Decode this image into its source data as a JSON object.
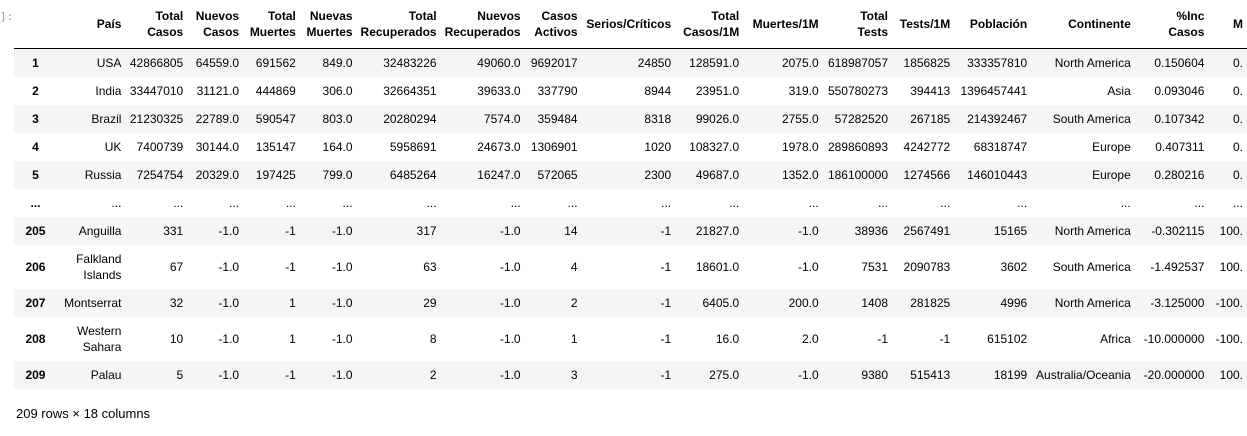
{
  "prompt_marker": "]:",
  "table": {
    "columns": [
      "",
      "País",
      "Total Casos",
      "Nuevos Casos",
      "Total Muertes",
      "Nuevas Muertes",
      "Total Recuperados",
      "Nuevos Recuperados",
      "Casos Activos",
      "Serios/Críticos",
      "Total Casos/1M",
      "Muertes/1M",
      "Total Tests",
      "Tests/1M",
      "Población",
      "Continente",
      "%Inc Casos",
      "M"
    ],
    "rows": [
      {
        "idx": "1",
        "cells": [
          "USA",
          "42866805",
          "64559.0",
          "691562",
          "849.0",
          "32483226",
          "49060.0",
          "9692017",
          "24850",
          "128591.0",
          "2075.0",
          "618987057",
          "1856825",
          "333357810",
          "North America",
          "0.150604",
          "0."
        ]
      },
      {
        "idx": "2",
        "cells": [
          "India",
          "33447010",
          "31121.0",
          "444869",
          "306.0",
          "32664351",
          "39633.0",
          "337790",
          "8944",
          "23951.0",
          "319.0",
          "550780273",
          "394413",
          "1396457441",
          "Asia",
          "0.093046",
          "0."
        ]
      },
      {
        "idx": "3",
        "cells": [
          "Brazil",
          "21230325",
          "22789.0",
          "590547",
          "803.0",
          "20280294",
          "7574.0",
          "359484",
          "8318",
          "99026.0",
          "2755.0",
          "57282520",
          "267185",
          "214392467",
          "South America",
          "0.107342",
          "0."
        ]
      },
      {
        "idx": "4",
        "cells": [
          "UK",
          "7400739",
          "30144.0",
          "135147",
          "164.0",
          "5958691",
          "24673.0",
          "1306901",
          "1020",
          "108327.0",
          "1978.0",
          "289860893",
          "4242772",
          "68318747",
          "Europe",
          "0.407311",
          "0."
        ]
      },
      {
        "idx": "5",
        "cells": [
          "Russia",
          "7254754",
          "20329.0",
          "197425",
          "799.0",
          "6485264",
          "16247.0",
          "572065",
          "2300",
          "49687.0",
          "1352.0",
          "186100000",
          "1274566",
          "146010443",
          "Europe",
          "0.280216",
          "0."
        ]
      },
      {
        "idx": "...",
        "cells": [
          "...",
          "...",
          "...",
          "...",
          "...",
          "...",
          "...",
          "...",
          "...",
          "...",
          "...",
          "...",
          "...",
          "...",
          "...",
          "...",
          "..."
        ]
      },
      {
        "idx": "205",
        "cells": [
          "Anguilla",
          "331",
          "-1.0",
          "-1",
          "-1.0",
          "317",
          "-1.0",
          "14",
          "-1",
          "21827.0",
          "-1.0",
          "38936",
          "2567491",
          "15165",
          "North America",
          "-0.302115",
          "100."
        ]
      },
      {
        "idx": "206",
        "cells": [
          "Falkland Islands",
          "67",
          "-1.0",
          "-1",
          "-1.0",
          "63",
          "-1.0",
          "4",
          "-1",
          "18601.0",
          "-1.0",
          "7531",
          "2090783",
          "3602",
          "South America",
          "-1.492537",
          "100."
        ]
      },
      {
        "idx": "207",
        "cells": [
          "Montserrat",
          "32",
          "-1.0",
          "1",
          "-1.0",
          "29",
          "-1.0",
          "2",
          "-1",
          "6405.0",
          "200.0",
          "1408",
          "281825",
          "4996",
          "North America",
          "-3.125000",
          "-100."
        ]
      },
      {
        "idx": "208",
        "cells": [
          "Western Sahara",
          "10",
          "-1.0",
          "1",
          "-1.0",
          "8",
          "-1.0",
          "1",
          "-1",
          "16.0",
          "2.0",
          "-1",
          "-1",
          "615102",
          "Africa",
          "-10.000000",
          "-100."
        ]
      },
      {
        "idx": "209",
        "cells": [
          "Palau",
          "5",
          "-1.0",
          "-1",
          "-1.0",
          "2",
          "-1.0",
          "3",
          "-1",
          "275.0",
          "-1.0",
          "9380",
          "515413",
          "18199",
          "Australia/Oceania",
          "-20.000000",
          "100."
        ]
      }
    ]
  },
  "footer": "209 rows × 18 columns"
}
